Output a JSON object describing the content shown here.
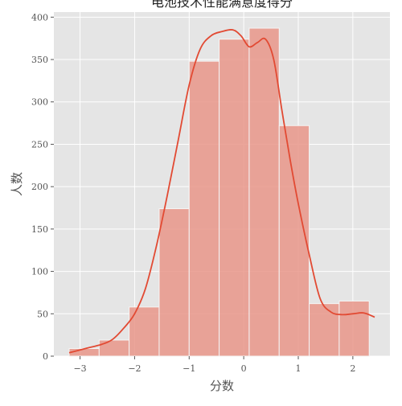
{
  "chart_data": {
    "type": "bar",
    "title": "电池技术性能满意度得分",
    "xlabel": "分数",
    "ylabel": "人数",
    "bins": [
      {
        "x0": -3.2,
        "x1": -2.65,
        "count": 9
      },
      {
        "x0": -2.65,
        "x1": -2.1,
        "count": 19
      },
      {
        "x0": -2.1,
        "x1": -1.55,
        "count": 58
      },
      {
        "x0": -1.55,
        "x1": -1.0,
        "count": 174
      },
      {
        "x0": -1.0,
        "x1": -0.45,
        "count": 348
      },
      {
        "x0": -0.45,
        "x1": 0.1,
        "count": 374
      },
      {
        "x0": 0.1,
        "x1": 0.65,
        "count": 387
      },
      {
        "x0": 0.65,
        "x1": 1.2,
        "count": 272
      },
      {
        "x0": 1.2,
        "x1": 1.75,
        "count": 62
      },
      {
        "x0": 1.75,
        "x1": 2.3,
        "count": 65
      }
    ],
    "kde": {
      "x": [
        -3.2,
        -2.9,
        -2.6,
        -2.4,
        -2.2,
        -2.0,
        -1.8,
        -1.6,
        -1.4,
        -1.2,
        -1.0,
        -0.8,
        -0.6,
        -0.4,
        -0.2,
        -0.05,
        0.1,
        0.25,
        0.4,
        0.55,
        0.7,
        0.85,
        1.0,
        1.2,
        1.4,
        1.6,
        1.8,
        2.0,
        2.2,
        2.4
      ],
      "y": [
        4,
        9,
        14,
        20,
        33,
        50,
        80,
        130,
        190,
        255,
        320,
        362,
        378,
        383,
        385,
        378,
        365,
        370,
        374,
        350,
        290,
        232,
        180,
        120,
        68,
        52,
        49,
        50,
        51,
        46
      ]
    },
    "x_ticks": [
      -3,
      -2,
      -1,
      0,
      1,
      2
    ],
    "y_ticks": [
      0,
      50,
      100,
      150,
      200,
      250,
      300,
      350,
      400
    ],
    "xlim": [
      -3.48,
      2.68
    ],
    "ylim": [
      0,
      406
    ],
    "grid": true,
    "colors": {
      "bar_fill": "#e9968a",
      "bar_edge": "#f5f5f5",
      "line": "#e24a33",
      "plot_bg": "#e5e5e5",
      "grid": "#ffffff"
    }
  }
}
